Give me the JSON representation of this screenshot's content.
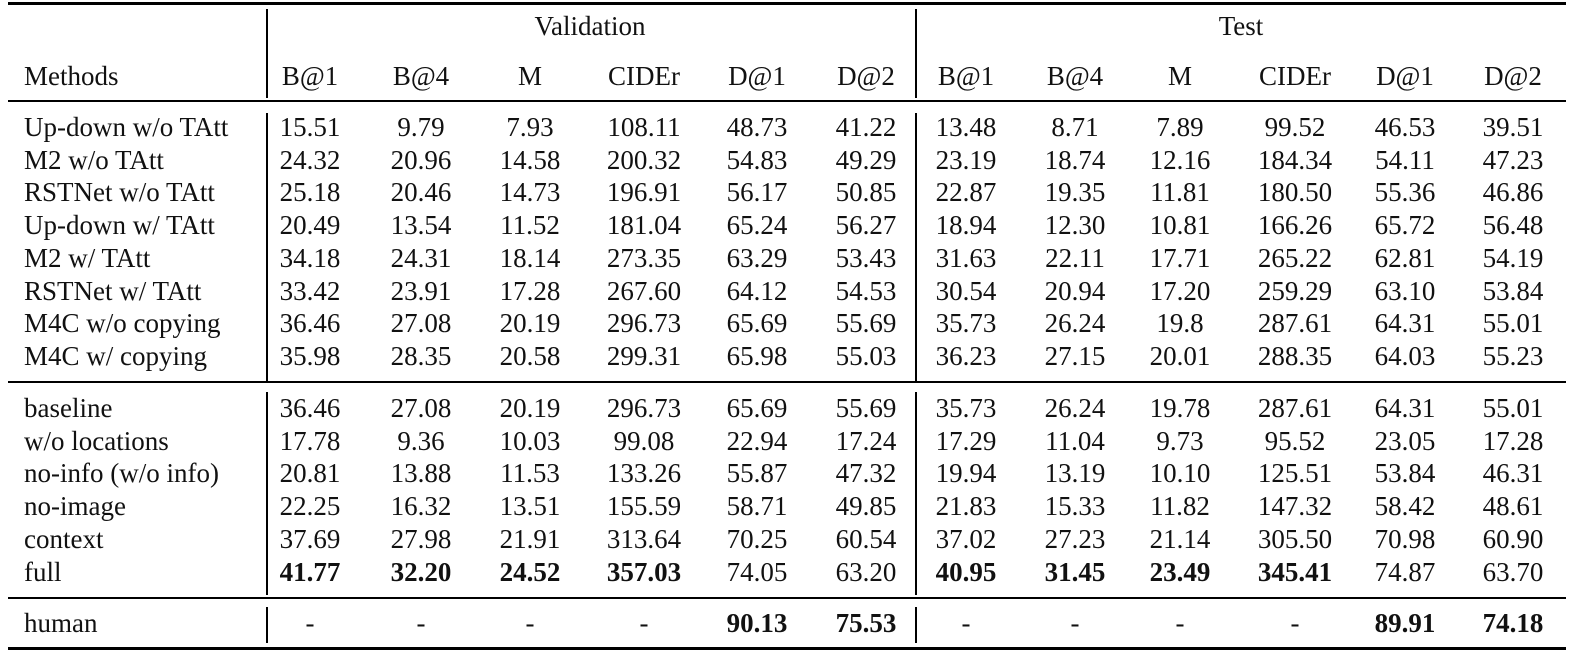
{
  "table": {
    "groups": [
      "Validation",
      "Test"
    ],
    "method_header": "Methods",
    "columns": [
      "B@1",
      "B@4",
      "M",
      "CIDEr",
      "D@1",
      "D@2",
      "B@1",
      "B@4",
      "M",
      "CIDEr",
      "D@1",
      "D@2"
    ],
    "sections": [
      {
        "rows": [
          {
            "method": "Up-down w/o TAtt",
            "values": [
              "15.51",
              "9.79",
              "7.93",
              "108.11",
              "48.73",
              "41.22",
              "13.48",
              "8.71",
              "7.89",
              "99.52",
              "46.53",
              "39.51"
            ],
            "bold": []
          },
          {
            "method": "M2 w/o TAtt",
            "values": [
              "24.32",
              "20.96",
              "14.58",
              "200.32",
              "54.83",
              "49.29",
              "23.19",
              "18.74",
              "12.16",
              "184.34",
              "54.11",
              "47.23"
            ],
            "bold": []
          },
          {
            "method": "RSTNet w/o TAtt",
            "values": [
              "25.18",
              "20.46",
              "14.73",
              "196.91",
              "56.17",
              "50.85",
              "22.87",
              "19.35",
              "11.81",
              "180.50",
              "55.36",
              "46.86"
            ],
            "bold": []
          },
          {
            "method": "Up-down w/ TAtt",
            "values": [
              "20.49",
              "13.54",
              "11.52",
              "181.04",
              "65.24",
              "56.27",
              "18.94",
              "12.30",
              "10.81",
              "166.26",
              "65.72",
              "56.48"
            ],
            "bold": []
          },
          {
            "method": "M2 w/ TAtt",
            "values": [
              "34.18",
              "24.31",
              "18.14",
              "273.35",
              "63.29",
              "53.43",
              "31.63",
              "22.11",
              "17.71",
              "265.22",
              "62.81",
              "54.19"
            ],
            "bold": []
          },
          {
            "method": "RSTNet w/ TAtt",
            "values": [
              "33.42",
              "23.91",
              "17.28",
              "267.60",
              "64.12",
              "54.53",
              "30.54",
              "20.94",
              "17.20",
              "259.29",
              "63.10",
              "53.84"
            ],
            "bold": []
          },
          {
            "method": "M4C w/o copying",
            "values": [
              "36.46",
              "27.08",
              "20.19",
              "296.73",
              "65.69",
              "55.69",
              "35.73",
              "26.24",
              "19.8",
              "287.61",
              "64.31",
              "55.01"
            ],
            "bold": []
          },
          {
            "method": "M4C w/ copying",
            "values": [
              "35.98",
              "28.35",
              "20.58",
              "299.31",
              "65.98",
              "55.03",
              "36.23",
              "27.15",
              "20.01",
              "288.35",
              "64.03",
              "55.23"
            ],
            "bold": []
          }
        ]
      },
      {
        "rows": [
          {
            "method": "baseline",
            "values": [
              "36.46",
              "27.08",
              "20.19",
              "296.73",
              "65.69",
              "55.69",
              "35.73",
              "26.24",
              "19.78",
              "287.61",
              "64.31",
              "55.01"
            ],
            "bold": []
          },
          {
            "method": "w/o locations",
            "values": [
              "17.78",
              "9.36",
              "10.03",
              "99.08",
              "22.94",
              "17.24",
              "17.29",
              "11.04",
              "9.73",
              "95.52",
              "23.05",
              "17.28"
            ],
            "bold": []
          },
          {
            "method": "no-info (w/o info)",
            "values": [
              "20.81",
              "13.88",
              "11.53",
              "133.26",
              "55.87",
              "47.32",
              "19.94",
              "13.19",
              "10.10",
              "125.51",
              "53.84",
              "46.31"
            ],
            "bold": []
          },
          {
            "method": "no-image",
            "values": [
              "22.25",
              "16.32",
              "13.51",
              "155.59",
              "58.71",
              "49.85",
              "21.83",
              "15.33",
              "11.82",
              "147.32",
              "58.42",
              "48.61"
            ],
            "bold": []
          },
          {
            "method": "context",
            "values": [
              "37.69",
              "27.98",
              "21.91",
              "313.64",
              "70.25",
              "60.54",
              "37.02",
              "27.23",
              "21.14",
              "305.50",
              "70.98",
              "60.90"
            ],
            "bold": []
          },
          {
            "method": "full",
            "values": [
              "41.77",
              "32.20",
              "24.52",
              "357.03",
              "74.05",
              "63.20",
              "40.95",
              "31.45",
              "23.49",
              "345.41",
              "74.87",
              "63.70"
            ],
            "bold": [
              0,
              1,
              2,
              3,
              6,
              7,
              8,
              9
            ]
          }
        ]
      },
      {
        "rows": [
          {
            "method": "human",
            "values": [
              "-",
              "-",
              "-",
              "-",
              "90.13",
              "75.53",
              "-",
              "-",
              "-",
              "-",
              "89.91",
              "74.18"
            ],
            "bold": [
              4,
              5,
              10,
              11
            ]
          }
        ]
      }
    ]
  }
}
